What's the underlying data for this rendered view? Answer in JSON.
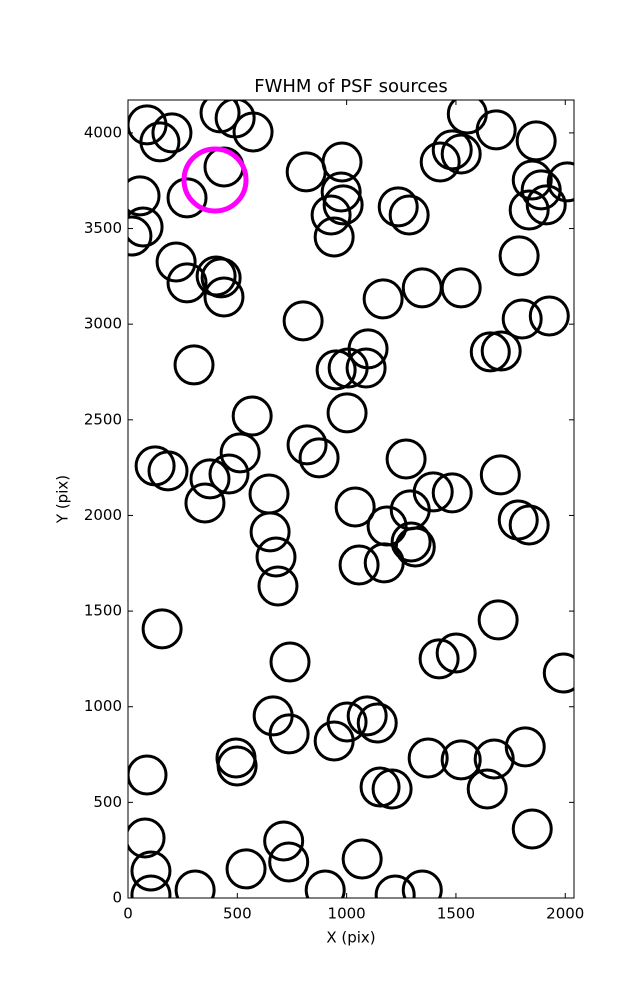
{
  "chart_data": {
    "type": "scatter",
    "title": "FWHM of PSF sources",
    "xlabel": "X (pix)",
    "ylabel": "Y (pix)",
    "xlim": [
      0,
      2040
    ],
    "ylim": [
      0,
      4172
    ],
    "xticks": [
      0,
      500,
      1000,
      1500,
      2000
    ],
    "yticks": [
      0,
      500,
      1000,
      1500,
      2000,
      2500,
      3000,
      3500,
      4000
    ],
    "series": [
      {
        "color": "#000000",
        "x": [
          87,
          146,
          201,
          421,
          490,
          572,
          439,
          55,
          270,
          18,
          69,
          220,
          270,
          403,
          426,
          439,
          302,
          815,
          979,
          975,
          984,
          929,
          943,
          1236,
          1286,
          1167,
          1346,
          801,
          1007,
          952,
          1098,
          1089,
          1002,
          568,
          513,
          462,
          375,
          352,
          124,
          183,
          645,
          650,
          677,
          686,
          819,
          874,
          1039,
          1057,
          1172,
          1185,
          1291,
          1272,
          1295,
          1314,
          1396,
          1483,
          1703,
          1785,
          1835,
          1428,
          1483,
          1524,
          1552,
          1684,
          1867,
          1849,
          1890,
          1913,
          2009,
          1835,
          1789,
          1803,
          1927,
          1657,
          1707,
          1524,
          156,
          741,
          1693,
          1501,
          1423,
          1991,
          664,
          737,
          494,
          499,
          87,
          943,
          1002,
          1094,
          1140,
          1153,
          1208,
          1373,
          1524,
          1675,
          1817,
          1643,
          1849,
          78,
          105,
          105,
          307,
          540,
          712,
          735,
          902,
          1071,
          1222,
          1346
        ],
        "values": [
          4042,
          3953,
          4000,
          4105,
          4078,
          4005,
          3822,
          3671,
          3660,
          3461,
          3508,
          3325,
          3216,
          3252,
          3242,
          3142,
          2787,
          3796,
          3848,
          3691,
          3624,
          3571,
          3456,
          3613,
          3571,
          3132,
          3190,
          3017,
          2771,
          2761,
          2871,
          2771,
          2536,
          2520,
          2327,
          2217,
          2191,
          2065,
          2259,
          2233,
          2112,
          1914,
          1783,
          1631,
          2369,
          2301,
          2044,
          1741,
          1752,
          1945,
          2029,
          2295,
          1861,
          1835,
          2123,
          2118,
          2212,
          1976,
          1950,
          3848,
          3911,
          3890,
          4099,
          4016,
          3958,
          3754,
          3702,
          3624,
          3744,
          3597,
          3357,
          3027,
          3043,
          2855,
          2860,
          3190,
          1407,
          1234,
          1454,
          1281,
          1250,
          1176,
          952,
          858,
          732,
          690,
          643,
          821,
          920,
          952,
          915,
          580,
          570,
          732,
          722,
          727,
          790,
          570,
          361,
          314,
          141,
          16,
          42,
          152,
          298,
          188,
          42,
          204,
          16,
          42
        ]
      },
      {
        "color": "#ff00ff",
        "x": [
          398
        ],
        "values": [
          3754
        ]
      }
    ]
  }
}
